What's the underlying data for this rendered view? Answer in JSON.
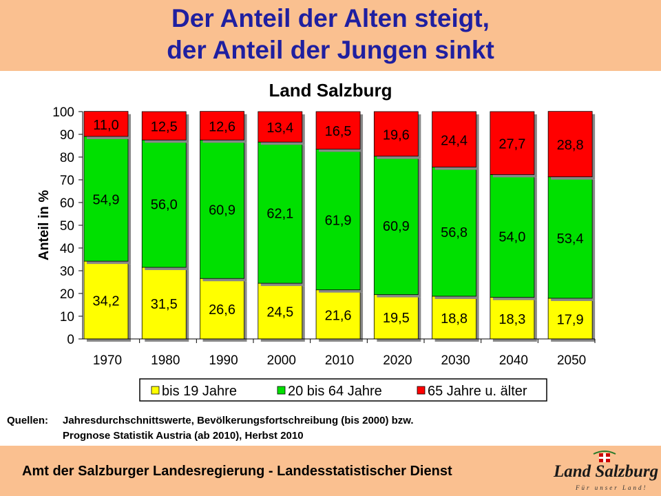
{
  "header": {
    "title_line1": "Der Anteil der Alten steigt,",
    "title_line2": "der Anteil der Jungen sinkt"
  },
  "chart_data": {
    "type": "bar",
    "stacked": true,
    "title": "Land Salzburg",
    "xlabel": "",
    "ylabel": "Anteil in %",
    "ylim": [
      0,
      100
    ],
    "yticks": [
      0,
      10,
      20,
      30,
      40,
      50,
      60,
      70,
      80,
      90,
      100
    ],
    "categories": [
      "1970",
      "1980",
      "1990",
      "2000",
      "2010",
      "2020",
      "2030",
      "2040",
      "2050"
    ],
    "series": [
      {
        "name": "bis 19 Jahre",
        "color": "#ffff00",
        "values": [
          34.2,
          31.5,
          26.6,
          24.5,
          21.6,
          19.5,
          18.8,
          18.3,
          17.9
        ],
        "labels": [
          "34,2",
          "31,5",
          "26,6",
          "24,5",
          "21,6",
          "19,5",
          "18,8",
          "18,3",
          "17,9"
        ]
      },
      {
        "name": "20 bis 64 Jahre",
        "color": "#00e000",
        "values": [
          54.9,
          56.0,
          60.9,
          62.1,
          61.9,
          60.9,
          56.8,
          54.0,
          53.4
        ],
        "labels": [
          "54,9",
          "56,0",
          "60,9",
          "62,1",
          "61,9",
          "60,9",
          "56,8",
          "54,0",
          "53,4"
        ]
      },
      {
        "name": "65 Jahre u. älter",
        "color": "#ff0000",
        "values": [
          11.0,
          12.5,
          12.6,
          13.4,
          16.5,
          19.6,
          24.4,
          27.7,
          28.8
        ],
        "labels": [
          "11,0",
          "12,5",
          "12,6",
          "13,4",
          "16,5",
          "19,6",
          "24,4",
          "27,7",
          "28,8"
        ]
      }
    ],
    "grid": false,
    "legend_position": "bottom"
  },
  "sources": {
    "label": "Quellen:",
    "line1": "Jahresdurchschnittswerte, Bevölkerungsfortschreibung (bis 2000) bzw.",
    "line2": "Prognose Statistik Austria (ab 2010), Herbst 2010"
  },
  "footer": {
    "text": "Amt der Salzburger Landesregierung - Landesstatistischer Dienst",
    "logo_text": "Land Salzburg",
    "logo_tagline": "Für unser Land!"
  }
}
